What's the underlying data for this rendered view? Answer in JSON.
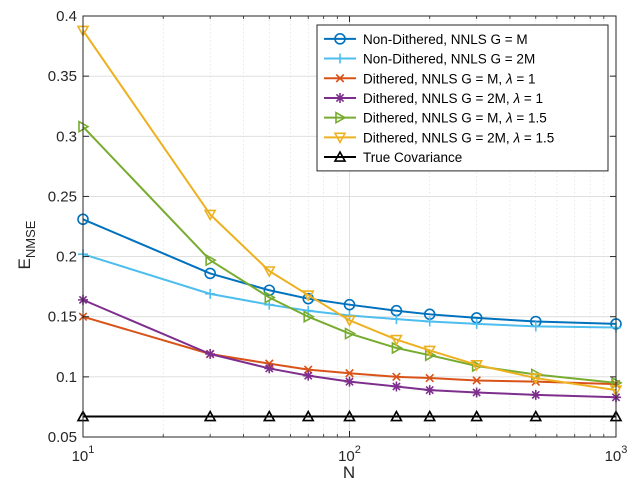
{
  "chart_data": {
    "type": "line",
    "title": "",
    "xlabel": "N",
    "ylabel_main": "E",
    "ylabel_sub": "NMSE",
    "xscale": "log",
    "xlim": [
      10,
      1000
    ],
    "ylim": [
      0.05,
      0.4
    ],
    "grid": true,
    "legend_position": "top-right",
    "x_ticks": [
      {
        "value": 10,
        "base": "10",
        "exp": "1"
      },
      {
        "value": 100,
        "base": "10",
        "exp": "2"
      },
      {
        "value": 1000,
        "base": "10",
        "exp": "3"
      }
    ],
    "y_ticks": [
      {
        "value": 0.05,
        "label": "0.05"
      },
      {
        "value": 0.1,
        "label": "0.1"
      },
      {
        "value": 0.15,
        "label": "0.15"
      },
      {
        "value": 0.2,
        "label": "0.2"
      },
      {
        "value": 0.25,
        "label": "0.25"
      },
      {
        "value": 0.3,
        "label": "0.3"
      },
      {
        "value": 0.35,
        "label": "0.35"
      },
      {
        "value": 0.4,
        "label": "0.4"
      }
    ],
    "x": [
      10,
      30,
      50,
      70,
      100,
      150,
      200,
      300,
      500,
      1000
    ],
    "series": [
      {
        "name": "Non-Dithered, NNLS G = M",
        "name_tail": "",
        "color": "#0072BD",
        "marker": "circle",
        "values": [
          0.231,
          0.186,
          0.172,
          0.165,
          0.16,
          0.155,
          0.152,
          0.149,
          0.146,
          0.144
        ]
      },
      {
        "name": "Non-Dithered, NNLS G = 2M",
        "name_tail": "",
        "color": "#4DBEEE",
        "marker": "plus",
        "values": [
          0.202,
          0.169,
          0.16,
          0.155,
          0.151,
          0.148,
          0.146,
          0.144,
          0.142,
          0.141
        ]
      },
      {
        "name": "Dithered, NNLS G = M, ",
        "name_tail": " = 1",
        "color": "#D95319",
        "marker": "x",
        "values": [
          0.15,
          0.119,
          0.111,
          0.106,
          0.103,
          0.1,
          0.099,
          0.097,
          0.096,
          0.094
        ]
      },
      {
        "name": "Dithered, NNLS G = 2M, ",
        "name_tail": " = 1",
        "color": "#7E2F8E",
        "marker": "asterisk",
        "values": [
          0.164,
          0.119,
          0.107,
          0.101,
          0.096,
          0.092,
          0.089,
          0.087,
          0.085,
          0.083
        ]
      },
      {
        "name": "Dithered, NNLS G = M, ",
        "name_tail": " = 1.5",
        "color": "#77AC30",
        "marker": "triangle-right",
        "values": [
          0.308,
          0.197,
          0.166,
          0.15,
          0.136,
          0.124,
          0.118,
          0.109,
          0.102,
          0.095
        ]
      },
      {
        "name": "Dithered, NNLS G = 2M, ",
        "name_tail": " = 1.5",
        "color": "#EDB120",
        "marker": "triangle-down",
        "values": [
          0.388,
          0.235,
          0.188,
          0.168,
          0.147,
          0.131,
          0.122,
          0.11,
          0.099,
          0.089
        ]
      },
      {
        "name": "True Covariance",
        "name_tail": "",
        "color": "#000000",
        "marker": "triangle-up",
        "values": [
          0.067,
          0.067,
          0.067,
          0.067,
          0.067,
          0.067,
          0.067,
          0.067,
          0.067,
          0.067
        ]
      }
    ],
    "lambda_symbol": "λ"
  }
}
